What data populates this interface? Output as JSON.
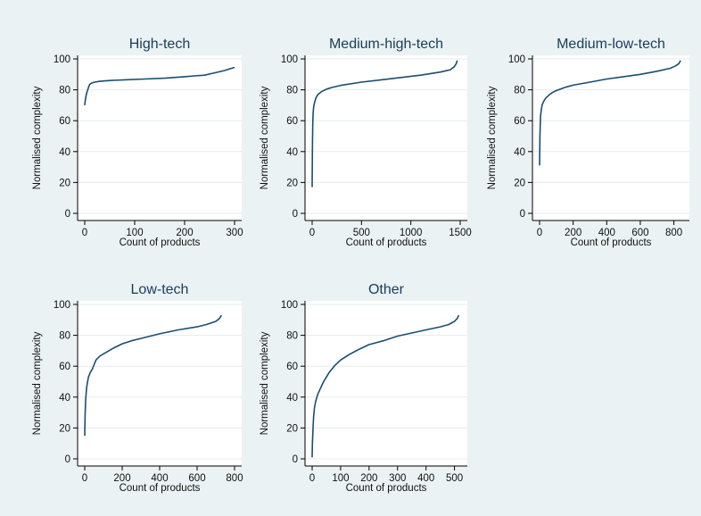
{
  "figure": {
    "background": "#eaf2f3",
    "plot_background": "#ffffff",
    "line_color": "#1a4e6e",
    "grid_color": "#e4ecee"
  },
  "chart_data": [
    {
      "type": "line",
      "title": "High-tech",
      "xlabel": "Count of products",
      "ylabel": "Normalised complexity",
      "xlim": [
        0,
        300
      ],
      "ylim": [
        0,
        100
      ],
      "xticks": [
        0,
        100,
        200,
        300
      ],
      "yticks": [
        0,
        20,
        40,
        60,
        80,
        100
      ],
      "grid": true,
      "series": [
        {
          "x": [
            0,
            1,
            2,
            4,
            6,
            8,
            10,
            12,
            15,
            20,
            30,
            50,
            80,
            120,
            160,
            200,
            220,
            240,
            260,
            280,
            290,
            295,
            300
          ],
          "y": [
            70,
            73,
            75,
            78,
            80,
            82,
            83.5,
            84,
            84.5,
            85,
            85.5,
            86,
            86.5,
            87,
            87.5,
            88.5,
            89,
            89.5,
            91,
            92.5,
            93.5,
            94,
            94.5
          ]
        }
      ]
    },
    {
      "type": "line",
      "title": "Medium-high-tech",
      "xlabel": "Count of products",
      "ylabel": "Normalised complexity",
      "xlim": [
        0,
        1500
      ],
      "ylim": [
        0,
        100
      ],
      "xticks": [
        0,
        500,
        1000,
        1500
      ],
      "yticks": [
        0,
        20,
        40,
        60,
        80,
        100
      ],
      "grid": true,
      "series": [
        {
          "x": [
            0,
            3,
            6,
            10,
            15,
            25,
            40,
            60,
            100,
            150,
            200,
            300,
            500,
            700,
            900,
            1100,
            1300,
            1400,
            1440,
            1460,
            1470
          ],
          "y": [
            17,
            42,
            58,
            65,
            69,
            72,
            75,
            77,
            79,
            80.5,
            81.5,
            83,
            85,
            86.5,
            88,
            89.5,
            91.5,
            93,
            95,
            97,
            99
          ]
        }
      ]
    },
    {
      "type": "line",
      "title": "Medium-low-tech",
      "xlabel": "Count of products",
      "ylabel": "Normalised complexity",
      "xlim": [
        0,
        850
      ],
      "ylim": [
        0,
        100
      ],
      "xticks": [
        0,
        200,
        400,
        600,
        800
      ],
      "yticks": [
        0,
        20,
        40,
        60,
        80,
        100
      ],
      "grid": true,
      "series": [
        {
          "x": [
            0,
            2,
            4,
            6,
            10,
            15,
            20,
            30,
            40,
            60,
            80,
            100,
            150,
            200,
            300,
            400,
            500,
            600,
            700,
            780,
            810,
            830,
            840
          ],
          "y": [
            31,
            50,
            58,
            63,
            67,
            70,
            71.5,
            73.5,
            75,
            77,
            78.5,
            79.5,
            81.5,
            83,
            85,
            87,
            88.5,
            90,
            92,
            94,
            95.5,
            97,
            99
          ]
        }
      ]
    },
    {
      "type": "line",
      "title": "Low-tech",
      "xlabel": "Count of products",
      "ylabel": "Normalised complexity",
      "xlim": [
        0,
        800
      ],
      "ylim": [
        0,
        100
      ],
      "xticks": [
        0,
        200,
        400,
        600,
        800
      ],
      "yticks": [
        0,
        20,
        40,
        60,
        80,
        100
      ],
      "grid": true,
      "series": [
        {
          "x": [
            0,
            2,
            5,
            10,
            15,
            20,
            30,
            40,
            50,
            60,
            80,
            100,
            150,
            200,
            250,
            300,
            400,
            500,
            600,
            650,
            700,
            720,
            730
          ],
          "y": [
            15,
            28,
            38,
            46,
            50,
            53,
            56,
            58,
            61,
            64,
            66.5,
            68,
            71.5,
            74.5,
            76.5,
            78,
            81,
            83.5,
            85.5,
            87,
            89,
            91,
            93
          ]
        }
      ]
    },
    {
      "type": "line",
      "title": "Other",
      "xlabel": "Count of products",
      "ylabel": "Normalised complexity",
      "xlim": [
        0,
        520
      ],
      "ylim": [
        0,
        100
      ],
      "xticks": [
        0,
        100,
        200,
        300,
        400,
        500
      ],
      "yticks": [
        0,
        20,
        40,
        60,
        80,
        100
      ],
      "grid": true,
      "series": [
        {
          "x": [
            0,
            1,
            3,
            5,
            8,
            12,
            20,
            30,
            40,
            50,
            60,
            80,
            100,
            130,
            160,
            200,
            250,
            300,
            350,
            400,
            450,
            480,
            500,
            510,
            515
          ],
          "y": [
            1,
            10,
            20,
            27,
            33,
            37,
            42,
            46,
            50,
            53,
            56,
            60.5,
            64,
            67.5,
            70.5,
            74,
            76.5,
            79.5,
            81.5,
            83.5,
            85.5,
            87,
            89,
            91,
            93
          ]
        }
      ]
    }
  ]
}
